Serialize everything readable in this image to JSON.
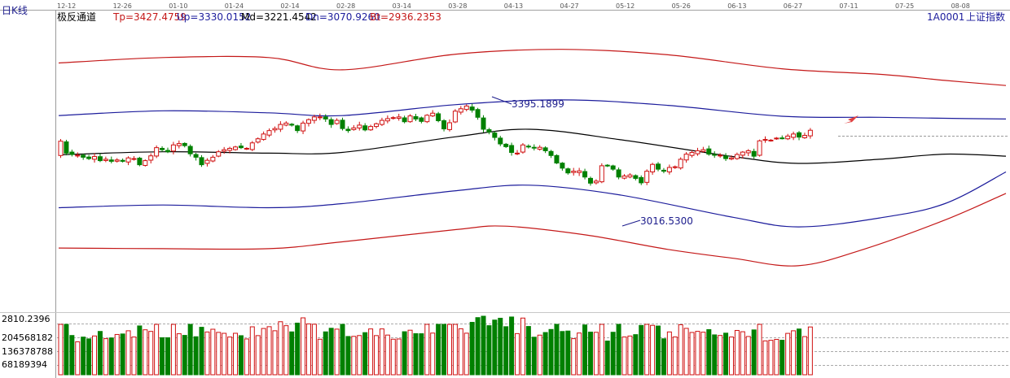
{
  "header": {
    "period_label": "日K线",
    "indicator_name": "极反通道",
    "tp_label": "Tp=3427.4759",
    "up_label": "Up=3330.0152",
    "md_label": "Md=3221.4542",
    "dn_label": "Dn=3070.9260",
    "bt_label": "Bt=2936.2353",
    "symbol_code": "1A0001",
    "symbol_name": "上证指数"
  },
  "volume_axis": {
    "labels": [
      "2810.2396",
      "204568182",
      "136378788",
      "68189394"
    ]
  },
  "colors": {
    "up": "#d01010",
    "down": "#008000",
    "tp_bt": "#c41818",
    "up_dn": "#1c1c9c",
    "md": "#000000",
    "annotation": "#1c1c8c",
    "arrow": "#e04040"
  },
  "chart_data": {
    "type": "candlestick",
    "x_dates": [
      "12-12",
      "12-26",
      "01-10",
      "01-24",
      "02-14",
      "02-28",
      "03-14",
      "03-28",
      "04-13",
      "04-27",
      "05-12",
      "05-26",
      "06-13",
      "06-27",
      "07-11",
      "07-25",
      "08-08"
    ],
    "annotations": [
      {
        "text": "3395.1899",
        "type": "high"
      },
      {
        "text": "3016.5300",
        "type": "low"
      }
    ],
    "series": [
      {
        "name": "Tp",
        "last": 3427.4759
      },
      {
        "name": "Up",
        "last": 3330.0152
      },
      {
        "name": "Md",
        "last": 3221.4542
      },
      {
        "name": "Dn",
        "last": 3070.926
      },
      {
        "name": "Bt",
        "last": 2936.2353
      }
    ],
    "closes": [
      3265,
      3230,
      3226,
      3224,
      3218,
      3214,
      3220,
      3208,
      3212,
      3206,
      3210,
      3206,
      3216,
      3214,
      3196,
      3208,
      3222,
      3246,
      3240,
      3234,
      3254,
      3258,
      3252,
      3228,
      3218,
      3196,
      3209,
      3218,
      3234,
      3240,
      3244,
      3248,
      3246,
      3244,
      3260,
      3272,
      3286,
      3296,
      3302,
      3314,
      3318,
      3312,
      3296,
      3318,
      3328,
      3336,
      3336,
      3330,
      3314,
      3326,
      3302,
      3296,
      3304,
      3312,
      3298,
      3308,
      3316,
      3326,
      3331,
      3334,
      3336,
      3322,
      3339,
      3330,
      3323,
      3341,
      3347,
      3325,
      3301,
      3319,
      3353,
      3360,
      3368,
      3356,
      3335,
      3300,
      3292,
      3276,
      3257,
      3249,
      3232,
      3230,
      3254,
      3249,
      3245,
      3247,
      3237,
      3223,
      3201,
      3186,
      3172,
      3177,
      3178,
      3160,
      3142,
      3148,
      3193,
      3194,
      3183,
      3160,
      3163,
      3166,
      3156,
      3143,
      3177,
      3197,
      3183,
      3177,
      3188,
      3190,
      3212,
      3227,
      3232,
      3237,
      3240,
      3227,
      3224,
      3224,
      3214,
      3216,
      3226,
      3233,
      3237,
      3221,
      3266,
      3270,
      3268,
      3274,
      3274,
      3280,
      3286,
      3277,
      3282,
      3297
    ]
  }
}
